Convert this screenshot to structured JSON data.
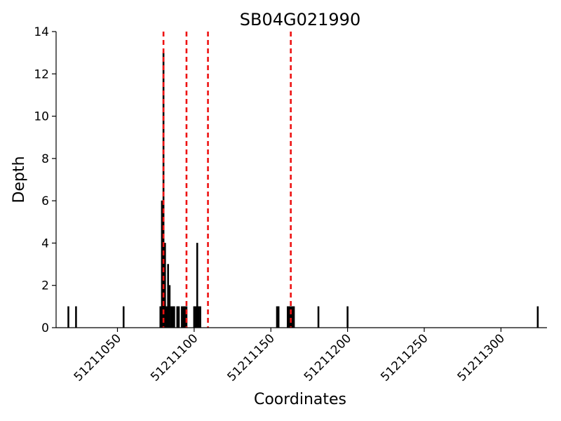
{
  "chart_data": {
    "type": "bar",
    "title": "SB04G021990",
    "xlabel": "Coordinates",
    "ylabel": "Depth",
    "xlim": [
      51211010,
      51211330
    ],
    "ylim": [
      0,
      14
    ],
    "xticks": [
      51211050,
      51211100,
      51211150,
      51211200,
      51211250,
      51211300
    ],
    "xtick_labels": [
      "51211050",
      "51211100",
      "51211150",
      "51211200",
      "51211250",
      "51211300"
    ],
    "yticks": [
      0,
      2,
      4,
      6,
      8,
      10,
      12,
      14
    ],
    "ytick_labels": [
      "0",
      "2",
      "4",
      "6",
      "8",
      "10",
      "12",
      "14"
    ],
    "grid": false,
    "bar_color": "#000000",
    "series": [
      {
        "x": [
          51211018,
          51211023,
          51211054,
          51211078,
          51211079,
          51211080,
          51211081,
          51211082,
          51211083,
          51211084,
          51211085,
          51211086,
          51211087,
          51211089,
          51211090,
          51211092,
          51211093,
          51211094,
          51211095,
          51211100,
          51211101,
          51211102,
          51211103,
          51211104,
          51211154,
          51211155,
          51211161,
          51211162,
          51211163,
          51211164,
          51211165,
          51211181,
          51211200,
          51211324
        ],
        "values": [
          1,
          1,
          1,
          1,
          6,
          13,
          4,
          1,
          3,
          2,
          1,
          1,
          1,
          1,
          1,
          1,
          1,
          1,
          1,
          1,
          1,
          4,
          1,
          1,
          1,
          1,
          1,
          1,
          1,
          1,
          1,
          1,
          1,
          1
        ]
      }
    ],
    "vlines": [
      51211080,
      51211095,
      51211109,
      51211163
    ],
    "vline_color": "#ee1111"
  }
}
